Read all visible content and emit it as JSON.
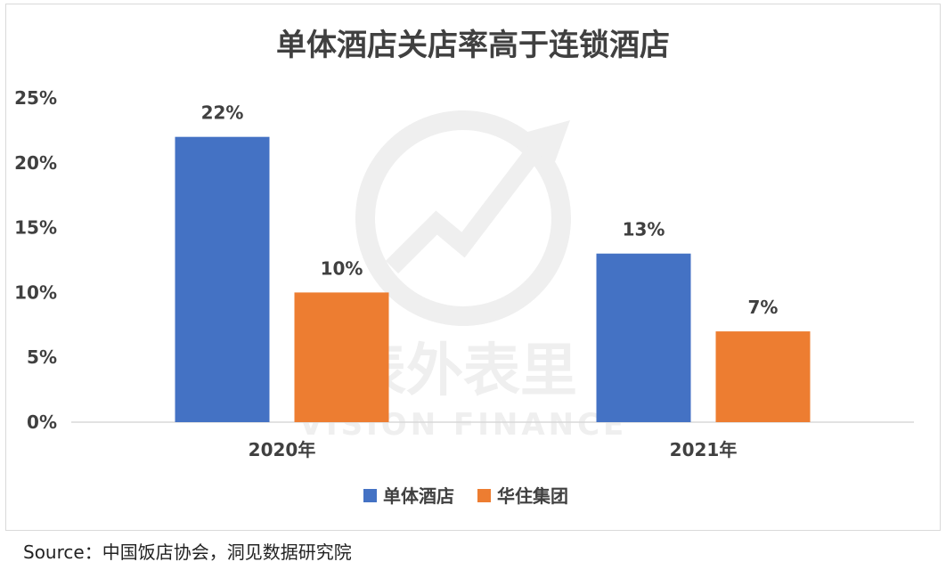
{
  "source_text": "Source：中国饭店协会，洞见数据研究院",
  "watermark": {
    "brand_cn": "表外表里",
    "brand_en": "VISION FINANCE"
  },
  "colors": {
    "series_1": "#4472c4",
    "series_2": "#ed7d31",
    "text": "#404040",
    "grid": "#d9d9d9",
    "watermark": "#efefef"
  },
  "chart_data": {
    "type": "bar",
    "title": "单体酒店关店率高于连锁酒店",
    "categories": [
      "2020年",
      "2021年"
    ],
    "series": [
      {
        "name": "单体酒店",
        "values": [
          22,
          13
        ],
        "labels": [
          "22%",
          "13%"
        ]
      },
      {
        "name": "华住集团",
        "values": [
          10,
          7
        ],
        "labels": [
          "10%",
          "7%"
        ]
      }
    ],
    "y_ticks": [
      "0%",
      "5%",
      "10%",
      "15%",
      "20%",
      "25%"
    ],
    "ylim": [
      0,
      25
    ],
    "xlabel": "",
    "ylabel": "",
    "grid": false,
    "legend_position": "bottom"
  }
}
